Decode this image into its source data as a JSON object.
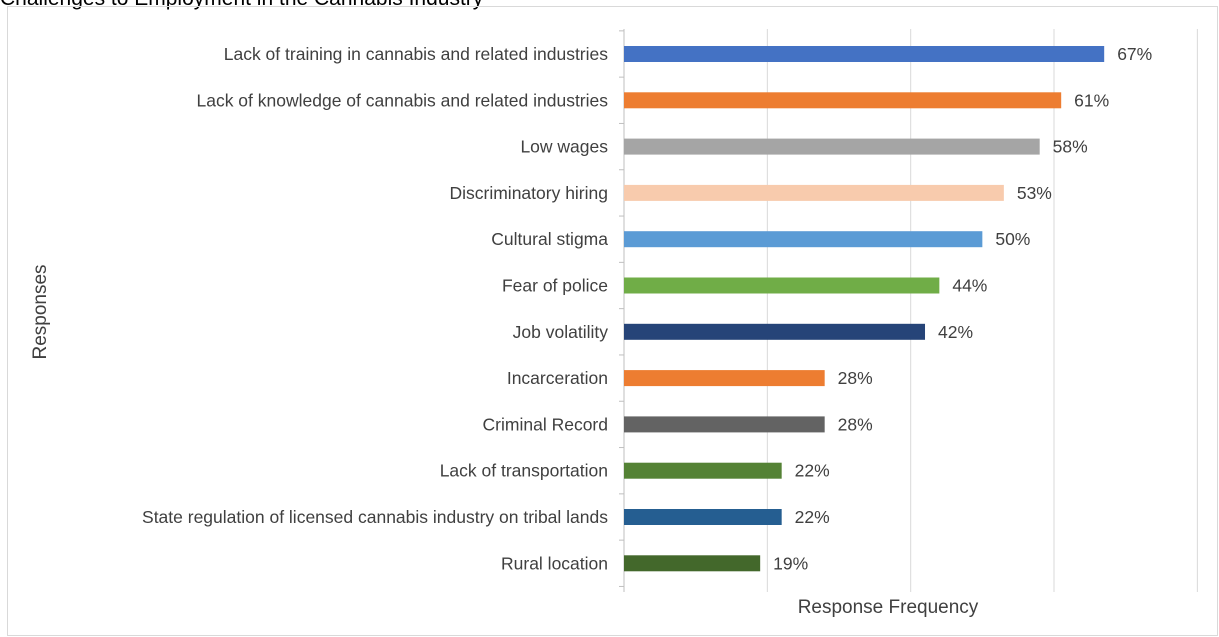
{
  "page_title": "Challenges to Employment in the Cannabis Industry",
  "chart_data": {
    "type": "bar",
    "orientation": "horizontal",
    "title": "",
    "xlabel": "Response Frequency",
    "ylabel": "Responses",
    "xlim": [
      0,
      80
    ],
    "grid": true,
    "legend": "none",
    "categories": [
      "Lack of training in cannabis and related industries",
      "Lack of knowledge of cannabis and related industries",
      "Low wages",
      "Discriminatory hiring",
      "Cultural stigma",
      "Fear of police",
      "Job volatility",
      "Incarceration",
      "Criminal Record",
      "Lack of transportation",
      "State regulation of licensed cannabis industry on tribal lands",
      "Rural location"
    ],
    "values": [
      67,
      61,
      58,
      53,
      50,
      44,
      42,
      28,
      28,
      22,
      22,
      19
    ],
    "value_labels": [
      "67%",
      "61%",
      "58%",
      "53%",
      "50%",
      "44%",
      "42%",
      "28%",
      "28%",
      "22%",
      "22%",
      "19%"
    ],
    "colors": [
      "#4472c4",
      "#ed7d31",
      "#a5a5a5",
      "#f8cbad",
      "#5b9bd5",
      "#70ad47",
      "#264478",
      "#ed7d31",
      "#636363",
      "#548235",
      "#255e91",
      "#43682b"
    ]
  }
}
